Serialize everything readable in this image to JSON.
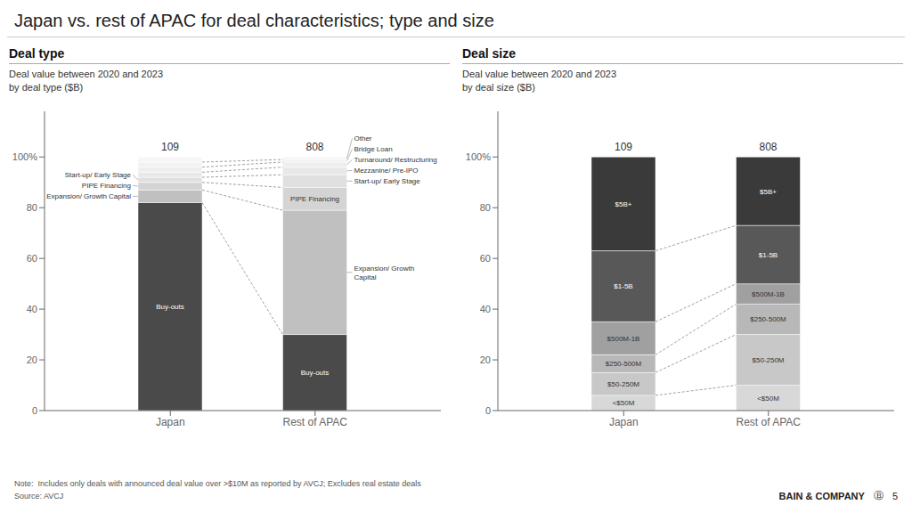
{
  "title": "Japan vs. rest of APAC for deal characteristics; type and size",
  "annotations": [
    "Note:  Includes only deals with announced deal value over >$10M as reported by AVCJ; Excludes real estate deals",
    "Source: AVCJ",
    "BAIN & COMPANY",
    "Ⓑ",
    "5"
  ],
  "chart_data": [
    {
      "type": "bar",
      "stacked": true,
      "grid": false,
      "title": "Deal type",
      "subtitle": "Deal value between 2020 and 2023\nby deal type ($B)",
      "categories": [
        "Japan",
        "Rest of APAC"
      ],
      "series": [
        {
          "name": "Buy-outs",
          "color": "#4a4a4a",
          "values": [
            82,
            30
          ]
        },
        {
          "name": "Expansion/ Growth\nCapital",
          "color": "#c0c0c0",
          "values": [
            5,
            49
          ],
          "labels": [
            "Expansion/ Growth Capital",
            "Expansion/ Growth\nCapital"
          ]
        },
        {
          "name": "PIPE Financing",
          "color": "#d4d4d4",
          "values": [
            3,
            9
          ]
        },
        {
          "name": "Start-up/ Early Stage",
          "color": "#e0e0e0",
          "values": [
            2,
            5
          ]
        },
        {
          "name": "Mezzanine/ Pre-IPO",
          "color": "#e8e8e8",
          "values": [
            2,
            3
          ],
          "labels": [
            null,
            "Mezzanine/ Pre-IPO"
          ]
        },
        {
          "name": "Turnaround/ Restructuring",
          "color": "#eeeeee",
          "values": [
            2,
            2
          ],
          "labels": [
            null,
            "Turnaround/ Restructuring"
          ]
        },
        {
          "name": "Bridge Loan",
          "color": "#f2f2f2",
          "values": [
            2,
            1
          ],
          "labels": [
            null,
            "Bridge Loan"
          ]
        },
        {
          "name": "Other",
          "color": "#f6f6f6",
          "values": [
            2,
            1
          ],
          "labels": [
            null,
            "Other"
          ]
        }
      ],
      "totals": [
        109,
        808
      ],
      "ylim": [
        0,
        118
      ],
      "yticks": [
        0,
        20,
        40,
        60,
        80,
        {
          "value": 100,
          "label": "100%"
        }
      ]
    },
    {
      "type": "bar",
      "stacked": true,
      "grid": false,
      "title": "Deal size",
      "subtitle": "Deal value between 2020 and 2023\nby deal size ($B)",
      "categories": [
        "Japan",
        "Rest of APAC"
      ],
      "series": [
        {
          "name": "<$50M",
          "color": "#d8d8d8",
          "values": [
            6,
            10
          ]
        },
        {
          "name": "$50-250M",
          "color": "#c8c8c8",
          "values": [
            9,
            20
          ]
        },
        {
          "name": "$250-500M",
          "color": "#b8b8b8",
          "values": [
            7,
            12
          ]
        },
        {
          "name": "$500M-1B",
          "color": "#a0a0a0",
          "values": [
            13,
            8
          ]
        },
        {
          "name": "$1-5B",
          "color": "#585858",
          "values": [
            28,
            23
          ]
        },
        {
          "name": "$5B+",
          "color": "#3a3a3a",
          "values": [
            37,
            27
          ]
        }
      ],
      "totals": [
        109,
        808
      ],
      "ylim": [
        0,
        118
      ],
      "yticks": [
        0,
        20,
        40,
        60,
        80,
        {
          "value": 100,
          "label": "100%"
        }
      ]
    }
  ]
}
